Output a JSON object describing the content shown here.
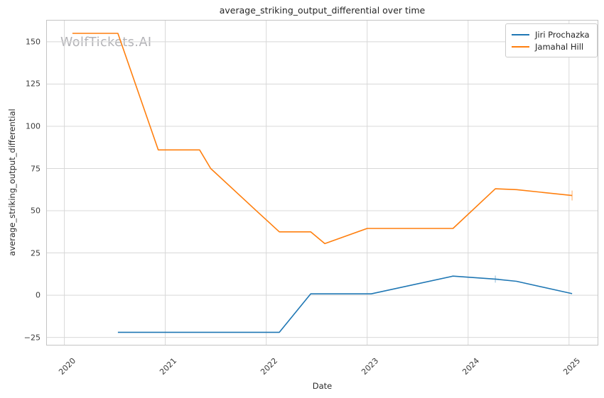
{
  "watermark": "WolfTickets.AI",
  "chart_data": {
    "type": "line",
    "title": "average_striking_output_differential over time",
    "xlabel": "Date",
    "ylabel": "average_striking_output_differential",
    "x_ticks": [
      2020,
      2021,
      2022,
      2023,
      2024,
      2025
    ],
    "y_ticks": [
      -25,
      0,
      25,
      50,
      75,
      100,
      125,
      150
    ],
    "xlim": [
      2019.82,
      2025.29
    ],
    "ylim": [
      -29.8,
      163.0
    ],
    "grid": true,
    "legend_position": "upper right",
    "colors": {
      "grid": "#d8d8d8",
      "spine": "#c4c4c4"
    },
    "series": [
      {
        "name": "Jiri Prochazka",
        "color": "#1f77b4",
        "points": [
          [
            2020.53,
            -22
          ],
          [
            2022.13,
            -22
          ],
          [
            2022.44,
            0.8
          ],
          [
            2023.04,
            0.8
          ],
          [
            2023.85,
            11.3
          ],
          [
            2024.27,
            9.5
          ],
          [
            2024.48,
            8.2
          ],
          [
            2025.03,
            0.9
          ]
        ]
      },
      {
        "name": "Jamahal Hill",
        "color": "#ff7f0e",
        "points": [
          [
            2020.08,
            155
          ],
          [
            2020.53,
            155
          ],
          [
            2020.93,
            86
          ],
          [
            2021.34,
            86
          ],
          [
            2021.45,
            75
          ],
          [
            2021.92,
            49
          ],
          [
            2022.13,
            37.5
          ],
          [
            2022.44,
            37.5
          ],
          [
            2022.58,
            30.5
          ],
          [
            2023.0,
            39.5
          ],
          [
            2023.85,
            39.5
          ],
          [
            2024.27,
            63
          ],
          [
            2024.48,
            62.5
          ],
          [
            2025.03,
            59
          ]
        ]
      }
    ],
    "faint_markers": [
      {
        "series": "Jiri Prochazka",
        "shape": "plus",
        "x": 2024.27,
        "y": 9.5,
        "color": "#1f77b4"
      },
      {
        "series": "Jamahal Hill",
        "shape": "vbar",
        "x": 2025.03,
        "y": 59,
        "color": "#ff7f0e"
      }
    ]
  }
}
